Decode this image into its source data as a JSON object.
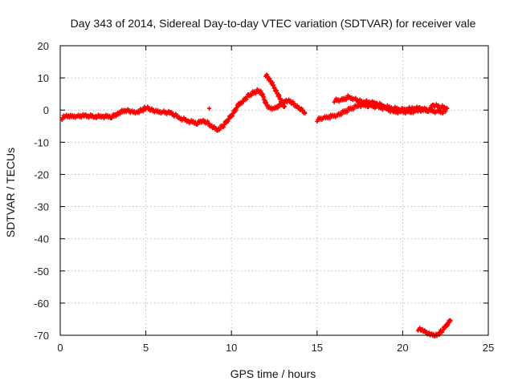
{
  "chart_data": {
    "type": "scatter",
    "title": "Day 343 of 2014, Sidereal Day-to-day VTEC variation (SDTVAR) for receiver vale",
    "xlabel": "GPS time / hours",
    "ylabel": "SDTVAR / TECUs",
    "xlim": [
      0,
      25
    ],
    "ylim": [
      -70,
      20
    ],
    "xticks": [
      0,
      5,
      10,
      15,
      20,
      25
    ],
    "yticks": [
      20,
      10,
      0,
      -10,
      -20,
      -30,
      -40,
      -50,
      -60,
      -70
    ],
    "grid": true,
    "marker": "+",
    "color": "#ff0000",
    "series": [
      {
        "name": "track-1",
        "points": [
          [
            0.1,
            -2.5
          ],
          [
            0.3,
            -2.0
          ],
          [
            0.6,
            -2.0
          ],
          [
            1.0,
            -1.8
          ],
          [
            1.5,
            -1.8
          ],
          [
            2.0,
            -2.0
          ],
          [
            2.5,
            -2.0
          ],
          [
            3.0,
            -2.0
          ],
          [
            3.3,
            -1.5
          ],
          [
            3.6,
            -0.5
          ],
          [
            3.9,
            0.0
          ],
          [
            4.2,
            -0.5
          ],
          [
            4.5,
            -0.5
          ],
          [
            4.8,
            0.0
          ],
          [
            5.0,
            0.8
          ],
          [
            5.3,
            0.0
          ],
          [
            5.6,
            -0.5
          ],
          [
            6.0,
            -0.5
          ],
          [
            6.5,
            -1.0
          ],
          [
            7.0,
            -2.5
          ],
          [
            7.5,
            -3.5
          ],
          [
            8.0,
            -4.0
          ],
          [
            8.3,
            -3.5
          ],
          [
            8.6,
            -4.0
          ],
          [
            8.8,
            -5.0
          ],
          [
            9.0,
            -5.5
          ],
          [
            9.2,
            -6.0
          ],
          [
            9.5,
            -5.0
          ],
          [
            9.8,
            -3.0
          ],
          [
            10.1,
            -1.0
          ],
          [
            10.4,
            1.5
          ],
          [
            10.7,
            3.0
          ],
          [
            11.0,
            4.5
          ],
          [
            11.3,
            5.5
          ],
          [
            11.6,
            6.0
          ],
          [
            11.8,
            5.0
          ],
          [
            12.0,
            2.0
          ],
          [
            12.2,
            0.5
          ],
          [
            12.5,
            0.5
          ],
          [
            12.8,
            1.5
          ],
          [
            13.0,
            2.5
          ],
          [
            13.2,
            3.0
          ],
          [
            13.5,
            2.5
          ],
          [
            13.8,
            1.0
          ],
          [
            14.1,
            0.0
          ],
          [
            14.3,
            -1.0
          ]
        ]
      },
      {
        "name": "track-2",
        "points": [
          [
            12.0,
            11.0
          ],
          [
            12.2,
            9.5
          ],
          [
            12.4,
            8.0
          ],
          [
            12.6,
            6.0
          ],
          [
            12.8,
            4.0
          ],
          [
            13.0,
            2.0
          ],
          [
            13.1,
            1.0
          ]
        ]
      },
      {
        "name": "track-3",
        "points": [
          [
            15.0,
            -3.0
          ],
          [
            15.4,
            -2.5
          ],
          [
            15.8,
            -2.0
          ],
          [
            16.2,
            -1.5
          ],
          [
            16.6,
            -0.5
          ],
          [
            17.0,
            0.5
          ],
          [
            17.5,
            1.5
          ],
          [
            18.0,
            1.5
          ],
          [
            18.5,
            1.0
          ],
          [
            19.0,
            0.5
          ],
          [
            19.5,
            -0.5
          ],
          [
            20.0,
            -0.5
          ],
          [
            20.5,
            -0.5
          ],
          [
            21.0,
            0.0
          ],
          [
            21.5,
            0.0
          ],
          [
            22.0,
            -0.5
          ],
          [
            22.5,
            -0.5
          ]
        ]
      },
      {
        "name": "track-4",
        "points": [
          [
            16.0,
            3.0
          ],
          [
            16.4,
            3.0
          ],
          [
            16.8,
            4.0
          ],
          [
            17.2,
            3.5
          ],
          [
            17.6,
            2.5
          ],
          [
            18.0,
            2.5
          ],
          [
            18.5,
            2.0
          ],
          [
            19.0,
            1.0
          ],
          [
            19.5,
            0.5
          ],
          [
            20.0,
            0.0
          ],
          [
            20.5,
            0.5
          ],
          [
            21.0,
            0.5
          ],
          [
            21.5,
            0.0
          ],
          [
            21.8,
            1.5
          ],
          [
            22.2,
            1.0
          ],
          [
            22.6,
            0.5
          ]
        ]
      },
      {
        "name": "isolated",
        "points": [
          [
            8.7,
            0.5
          ]
        ]
      },
      {
        "name": "arc-low",
        "points": [
          [
            20.9,
            -68.0
          ],
          [
            21.1,
            -68.5
          ],
          [
            21.3,
            -69.0
          ],
          [
            21.5,
            -69.5
          ],
          [
            21.7,
            -69.8
          ],
          [
            21.9,
            -69.8
          ],
          [
            22.1,
            -69.5
          ],
          [
            22.3,
            -68.5
          ],
          [
            22.5,
            -67.5
          ],
          [
            22.7,
            -66.0
          ],
          [
            22.8,
            -65.5
          ]
        ]
      }
    ]
  }
}
